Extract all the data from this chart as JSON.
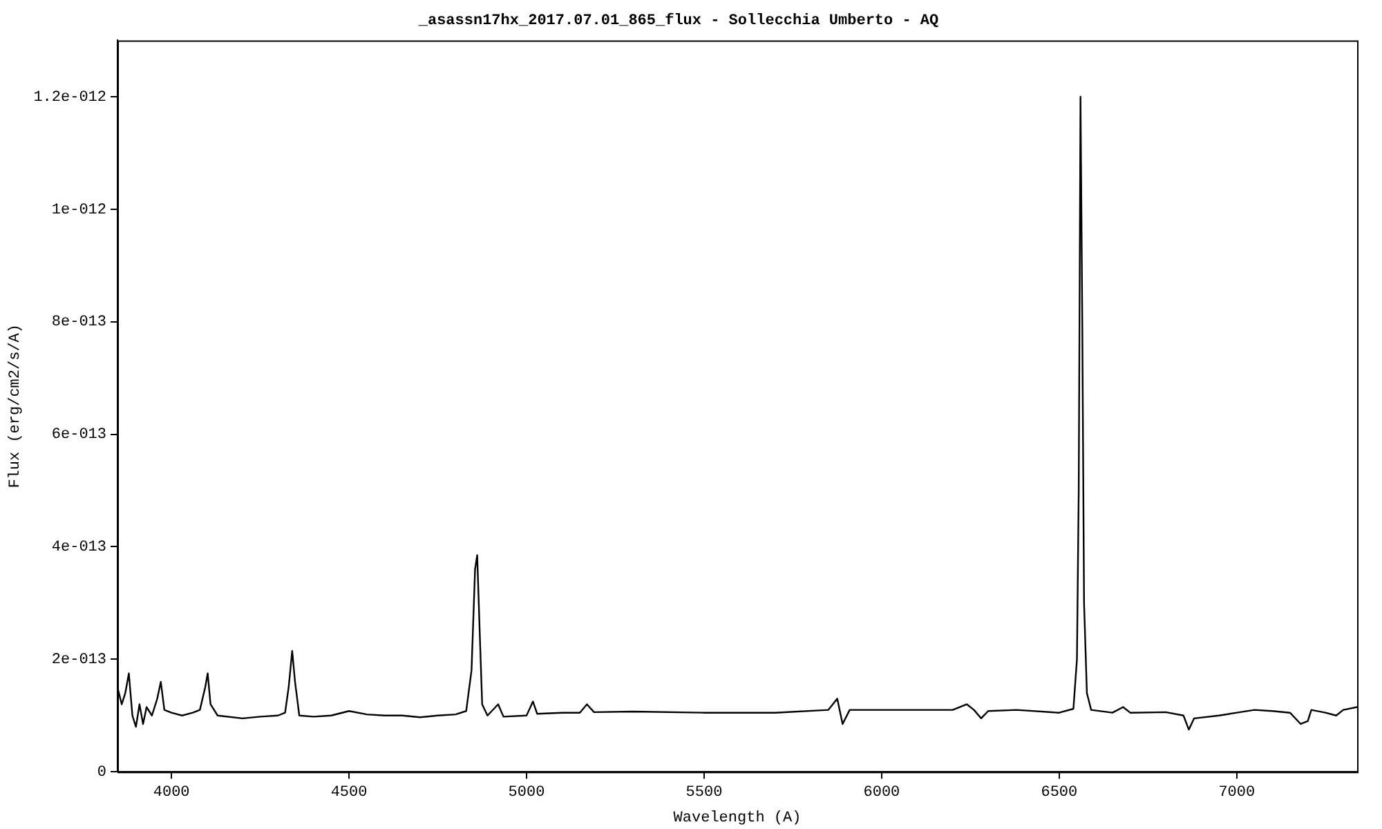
{
  "chart_data": {
    "type": "line",
    "title": "_asassn17hx_2017.07.01_865_flux - Sollecchia Umberto - AQ",
    "xlabel": "Wavelength (A)",
    "ylabel": "Flux (erg/cm2/s/A)",
    "color": "#000000",
    "x": [
      3848,
      3860,
      3870,
      3880,
      3890,
      3900,
      3910,
      3920,
      3930,
      3945,
      3960,
      3970,
      3980,
      4000,
      4030,
      4060,
      4080,
      4095,
      4102,
      4110,
      4130,
      4200,
      4250,
      4300,
      4320,
      4330,
      4340,
      4348,
      4360,
      4400,
      4450,
      4500,
      4550,
      4600,
      4650,
      4700,
      4750,
      4800,
      4830,
      4845,
      4855,
      4861,
      4868,
      4875,
      4890,
      4920,
      4935,
      5000,
      5018,
      5030,
      5100,
      5150,
      5170,
      5190,
      5300,
      5500,
      5700,
      5850,
      5875,
      5890,
      5910,
      6000,
      6100,
      6200,
      6240,
      6260,
      6280,
      6300,
      6380,
      6500,
      6540,
      6550,
      6555,
      6560,
      6565,
      6570,
      6578,
      6590,
      6650,
      6680,
      6700,
      6800,
      6850,
      6865,
      6880,
      6950,
      7000,
      7050,
      7100,
      7150,
      7180,
      7200,
      7210,
      7250,
      7280,
      7300,
      7339
    ],
    "values": [
      1.5e-13,
      1.2e-13,
      1.4e-13,
      1.75e-13,
      1e-13,
      8e-14,
      1.2e-13,
      8.5e-14,
      1.15e-13,
      1e-13,
      1.3e-13,
      1.6e-13,
      1.1e-13,
      1.05e-13,
      1e-13,
      1.05e-13,
      1.1e-13,
      1.5e-13,
      1.75e-13,
      1.2e-13,
      1e-13,
      9.5e-14,
      9.8e-14,
      1e-13,
      1.05e-13,
      1.5e-13,
      2.15e-13,
      1.6e-13,
      1e-13,
      9.8e-14,
      1e-13,
      1.08e-13,
      1.02e-13,
      1e-13,
      1e-13,
      9.7e-14,
      1e-13,
      1.02e-13,
      1.08e-13,
      1.8e-13,
      3.6e-13,
      3.85e-13,
      2.5e-13,
      1.2e-13,
      1e-13,
      1.2e-13,
      9.8e-14,
      1e-13,
      1.25e-13,
      1.03e-13,
      1.05e-13,
      1.05e-13,
      1.2e-13,
      1.06e-13,
      1.07e-13,
      1.05e-13,
      1.05e-13,
      1.1e-13,
      1.3e-13,
      8.5e-14,
      1.1e-13,
      1.1e-13,
      1.1e-13,
      1.1e-13,
      1.2e-13,
      1.1e-13,
      9.5e-14,
      1.08e-13,
      1.1e-13,
      1.05e-13,
      1.12e-13,
      2e-13,
      5e-13,
      1.2e-12,
      8e-13,
      3e-13,
      1.4e-13,
      1.1e-13,
      1.05e-13,
      1.15e-13,
      1.05e-13,
      1.06e-13,
      1e-13,
      7.5e-14,
      9.5e-14,
      1e-13,
      1.05e-13,
      1.1e-13,
      1.08e-13,
      1.05e-13,
      8.5e-14,
      9e-14,
      1.1e-13,
      1.05e-13,
      1e-13,
      1.1e-13,
      1.15e-13
    ],
    "xlim": [
      3848,
      7339
    ],
    "xticks": [
      4000,
      4500,
      5000,
      5500,
      6000,
      6500,
      7000
    ],
    "ylim": [
      0,
      1.3e-12
    ],
    "yticks": [
      0,
      {
        "value": 2e-13,
        "label": "2e-013"
      },
      {
        "value": 4e-13,
        "label": "4e-013"
      },
      {
        "value": 6e-13,
        "label": "6e-013"
      },
      {
        "value": 8e-13,
        "label": "8e-013"
      },
      {
        "value": 1e-12,
        "label": "1e-012"
      },
      {
        "value": 1.2e-12,
        "label": "1.2e-012"
      }
    ],
    "grid": false,
    "legend": false,
    "marker": "none",
    "line_style": "solid"
  }
}
